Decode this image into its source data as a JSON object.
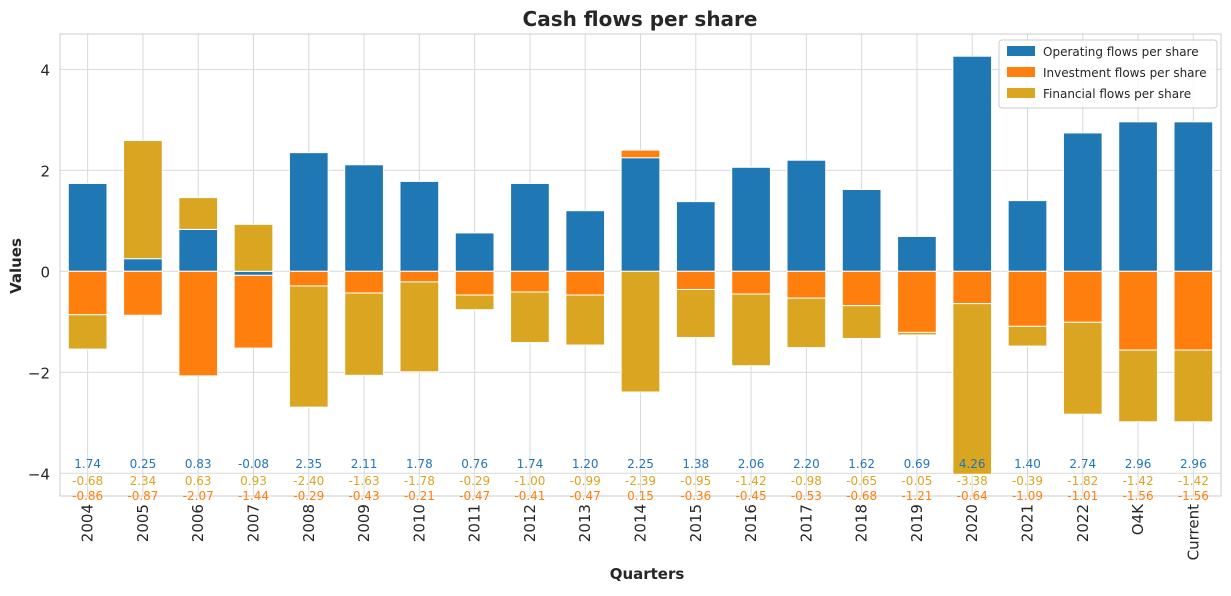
{
  "chart_data": {
    "type": "bar",
    "stacked": true,
    "title": "Cash flows per share",
    "xlabel": "Quarters",
    "ylabel": "Values",
    "ylim": [
      -4.45,
      4.7
    ],
    "yticks": [
      -4,
      -2,
      0,
      2,
      4
    ],
    "grid": true,
    "legend_position": "top-right",
    "categories": [
      "2004",
      "2005",
      "2006",
      "2007",
      "2008",
      "2009",
      "2010",
      "2011",
      "2012",
      "2013",
      "2014",
      "2015",
      "2016",
      "2017",
      "2018",
      "2019",
      "2020",
      "2021",
      "2022",
      "O4K",
      "Current"
    ],
    "series": [
      {
        "name": "Operating flows per share",
        "color": "#1f77b4",
        "values": [
          1.74,
          0.25,
          0.83,
          -0.08,
          2.35,
          2.11,
          1.78,
          0.76,
          1.74,
          1.2,
          2.25,
          1.38,
          2.06,
          2.2,
          1.62,
          0.69,
          4.26,
          1.4,
          2.74,
          2.96,
          2.96
        ]
      },
      {
        "name": "Investment flows per share",
        "color": "#ff7f0e",
        "values": [
          -0.86,
          -0.87,
          -2.07,
          -1.44,
          -0.29,
          -0.43,
          -0.21,
          -0.47,
          -0.41,
          -0.47,
          0.15,
          -0.36,
          -0.45,
          -0.53,
          -0.68,
          -1.21,
          -0.64,
          -1.09,
          -1.01,
          -1.56,
          -1.56
        ]
      },
      {
        "name": "Financial flows per share",
        "color": "#daa520",
        "values": [
          -0.68,
          2.34,
          0.63,
          0.93,
          -2.4,
          -1.63,
          -1.78,
          -0.29,
          -1.0,
          -0.99,
          -2.39,
          -0.95,
          -1.42,
          -0.98,
          -0.65,
          -0.05,
          -3.38,
          -0.39,
          -1.82,
          -1.42,
          -1.42
        ]
      }
    ],
    "data_labels": {
      "row1": {
        "color": "#1f77b4",
        "values": [
          "1.74",
          "0.25",
          "0.83",
          "-0.08",
          "2.35",
          "2.11",
          "1.78",
          "0.76",
          "1.74",
          "1.20",
          "2.25",
          "1.38",
          "2.06",
          "2.20",
          "1.62",
          "0.69",
          "4.26",
          "1.40",
          "2.74",
          "2.96",
          "2.96"
        ]
      },
      "row2": {
        "color": "#daa520",
        "values": [
          "-0.68",
          "2.34",
          "0.63",
          "0.93",
          "-2.40",
          "-1.63",
          "-1.78",
          "-0.29",
          "-1.00",
          "-0.99",
          "-2.39",
          "-0.95",
          "-1.42",
          "-0.98",
          "-0.65",
          "-0.05",
          "-3.38",
          "-0.39",
          "-1.82",
          "-1.42",
          "-1.42"
        ]
      },
      "row3": {
        "color": "#ff7f0e",
        "values": [
          "-0.86",
          "-0.87",
          "-2.07",
          "-1.44",
          "-0.29",
          "-0.43",
          "-0.21",
          "-0.47",
          "-0.41",
          "-0.47",
          "0.15",
          "-0.36",
          "-0.45",
          "-0.53",
          "-0.68",
          "-1.21",
          "-0.64",
          "-1.09",
          "-1.01",
          "-1.56",
          "-1.56"
        ]
      }
    }
  }
}
